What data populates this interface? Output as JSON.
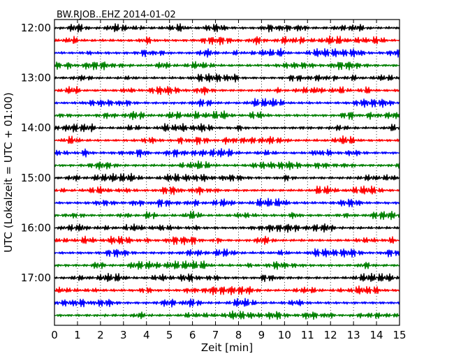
{
  "chart_data": {
    "type": "line",
    "title": "BW.RJOB..EHZ 2014-01-02",
    "xlabel": "Zeit  [min]",
    "ylabel": "UTC (Lokalzeit = UTC + 01:00)",
    "xlim": [
      0,
      15
    ],
    "x_ticks": [
      "0",
      "1",
      "2",
      "3",
      "4",
      "5",
      "6",
      "7",
      "8",
      "9",
      "10",
      "11",
      "12",
      "13",
      "14",
      "15"
    ],
    "y_tick_labels": [
      "12:00",
      "13:00",
      "14:00",
      "15:00",
      "16:00",
      "17:00"
    ],
    "trace_start_times": [
      "12:00",
      "12:15",
      "12:30",
      "12:45",
      "13:00",
      "13:15",
      "13:30",
      "13:45",
      "14:00",
      "14:15",
      "14:30",
      "14:45",
      "15:00",
      "15:15",
      "15:30",
      "15:45",
      "16:00",
      "16:15",
      "16:30",
      "16:45",
      "17:00",
      "17:15",
      "17:30",
      "17:45"
    ],
    "minutes_per_line": 15,
    "vertical_grid": "dotted",
    "series_colors": [
      "#000000",
      "#ff0000",
      "#0000ff",
      "#008000"
    ]
  }
}
